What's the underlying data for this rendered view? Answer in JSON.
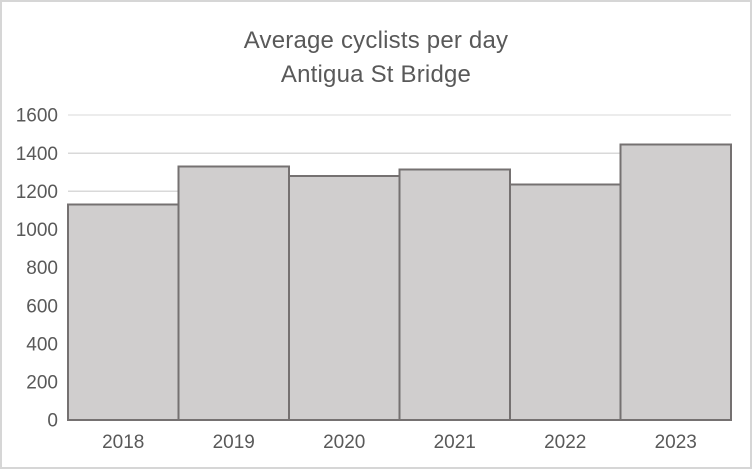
{
  "chart": {
    "title_line1": "Average cyclists per day",
    "title_line2": "Antigua St Bridge"
  },
  "chart_data": {
    "type": "bar",
    "title": "Average cyclists per day",
    "subtitle": "Antigua St Bridge",
    "categories": [
      "2018",
      "2019",
      "2020",
      "2021",
      "2022",
      "2023"
    ],
    "values": [
      1130,
      1330,
      1280,
      1315,
      1235,
      1445
    ],
    "xlabel": "",
    "ylabel": "",
    "ylim": [
      0,
      1600
    ],
    "ytick_step": 200,
    "ytick_labels": [
      "0",
      "200",
      "400",
      "600",
      "800",
      "1000",
      "1200",
      "1400",
      "1600"
    ],
    "grid": true,
    "legend": false,
    "colors": {
      "bar_fill": "#d0cece",
      "bar_border": "#757171",
      "gridline": "#d9d9d9",
      "axis_line": "#a6a6a6",
      "text": "#595959",
      "background": "#ffffff",
      "frame_border": "#d6d6d6"
    }
  }
}
